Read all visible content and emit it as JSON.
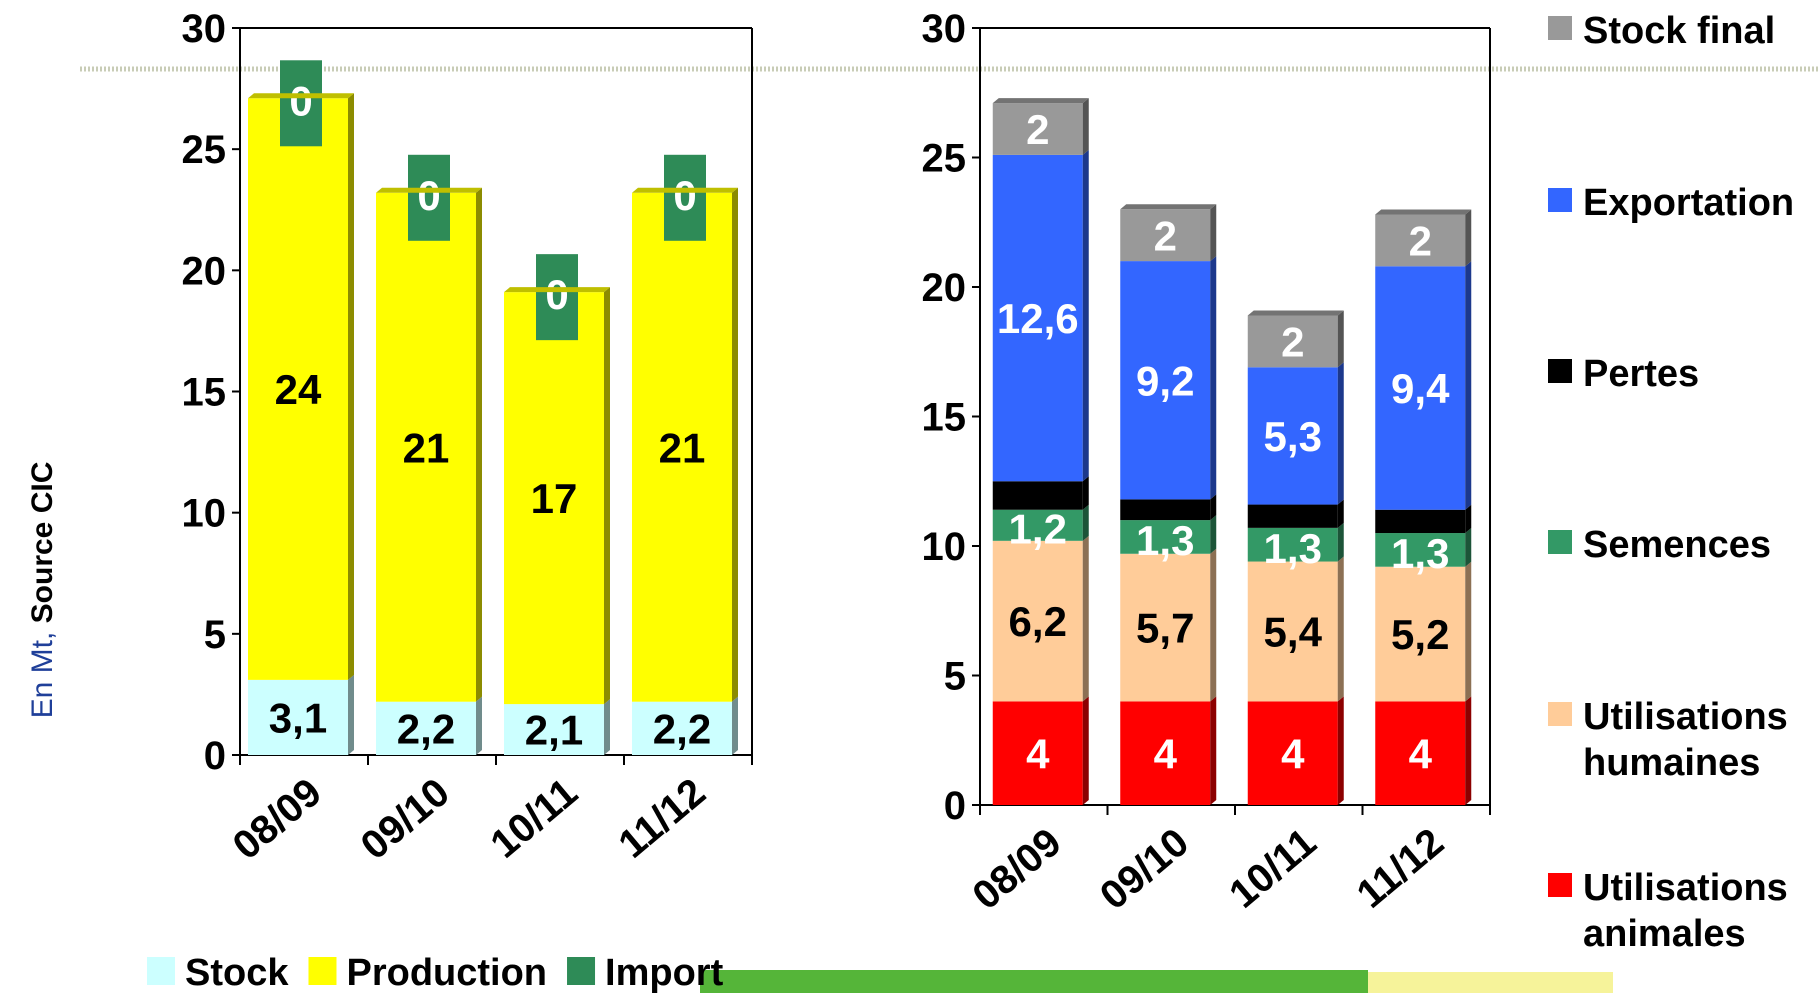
{
  "colors": {
    "stock": "#ccffff",
    "production": "#ffff00",
    "import": "#2e8b57",
    "stock_final": "#999999",
    "exportation": "#3366ff",
    "pertes": "#000000",
    "semences": "#339966",
    "utilisations_humaines": "#ffcc99",
    "utilisations_animales": "#ff0000",
    "source_blue": "#1f3f99"
  },
  "source_note": {
    "prefix": "En Mt,",
    "suffix": " Source CIC"
  },
  "chart_data": [
    {
      "type": "bar",
      "stacked": true,
      "categories": [
        "08/09",
        "09/10",
        "10/11",
        "11/12"
      ],
      "series": [
        {
          "name": "Stock",
          "key": "stock",
          "values": [
            3.1,
            2.2,
            2.1,
            2.2
          ],
          "labels": [
            "3,1",
            "2,2",
            "2,1",
            "2,2"
          ]
        },
        {
          "name": "Production",
          "key": "production",
          "values": [
            24,
            21,
            17,
            21
          ],
          "labels": [
            "24",
            "21",
            "17",
            "21"
          ]
        },
        {
          "name": "Import",
          "key": "import",
          "values": [
            0,
            0,
            0,
            0
          ],
          "labels": [
            "0",
            "0",
            "0",
            "0"
          ]
        }
      ],
      "ylim": [
        0,
        30
      ],
      "yticks": [
        "0",
        "5",
        "10",
        "15",
        "20",
        "25",
        "30"
      ],
      "legend_position": "bottom"
    },
    {
      "type": "bar",
      "stacked": true,
      "categories": [
        "08/09",
        "09/10",
        "10/11",
        "11/12"
      ],
      "series": [
        {
          "name": "Utilisations animales",
          "key": "utilisations_animales",
          "values": [
            4,
            4,
            4,
            4
          ],
          "labels": [
            "4",
            "4",
            "4",
            "4"
          ]
        },
        {
          "name": "Utilisations humaines",
          "key": "utilisations_humaines",
          "values": [
            6.2,
            5.7,
            5.4,
            5.2
          ],
          "labels": [
            "6,2",
            "5,7",
            "5,4",
            "5,2"
          ]
        },
        {
          "name": "Semences",
          "key": "semences",
          "values": [
            1.2,
            1.3,
            1.3,
            1.3
          ],
          "labels": [
            "1,2",
            "1,3",
            "1,3",
            "1,3"
          ]
        },
        {
          "name": "Pertes",
          "key": "pertes",
          "values": [
            1.1,
            0.8,
            0.9,
            0.9
          ],
          "labels": []
        },
        {
          "name": "Exportation",
          "key": "exportation",
          "values": [
            12.6,
            9.2,
            5.3,
            9.4
          ],
          "labels": [
            "12,6",
            "9,2",
            "5,3",
            "9,4"
          ]
        },
        {
          "name": "Stock final",
          "key": "stock_final",
          "values": [
            2,
            2,
            2,
            2
          ],
          "labels": [
            "2",
            "2",
            "2",
            "2"
          ]
        }
      ],
      "ylim": [
        0,
        30
      ],
      "yticks": [
        "0",
        "5",
        "10",
        "15",
        "20",
        "25",
        "30"
      ],
      "legend_position": "right",
      "legend": [
        {
          "key": "stock_final",
          "lines": [
            "Stock final"
          ]
        },
        {
          "key": "exportation",
          "lines": [
            "Exportation"
          ]
        },
        {
          "key": "pertes",
          "lines": [
            "Pertes"
          ]
        },
        {
          "key": "semences",
          "lines": [
            "Semences"
          ]
        },
        {
          "key": "utilisations_humaines",
          "lines": [
            "Utilisations",
            "humaines"
          ]
        },
        {
          "key": "utilisations_animales",
          "lines": [
            "Utilisations",
            "animales"
          ]
        }
      ]
    }
  ]
}
